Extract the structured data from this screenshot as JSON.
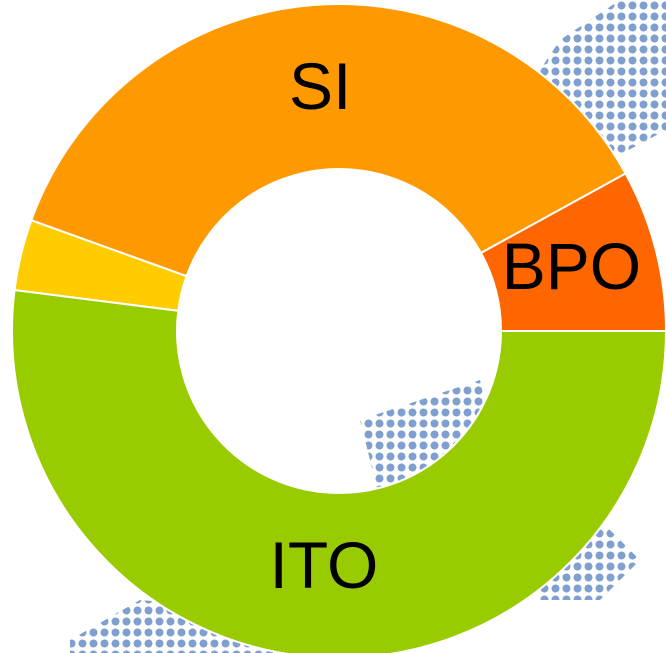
{
  "chart_data": {
    "type": "donut",
    "categories": [
      "ITO",
      null,
      "SI",
      "BPO"
    ],
    "values": [
      52,
      3.5,
      36.5,
      8
    ],
    "colors": [
      "#99cc00",
      "#ffcc00",
      "#ff9900",
      "#ff6600"
    ]
  }
}
